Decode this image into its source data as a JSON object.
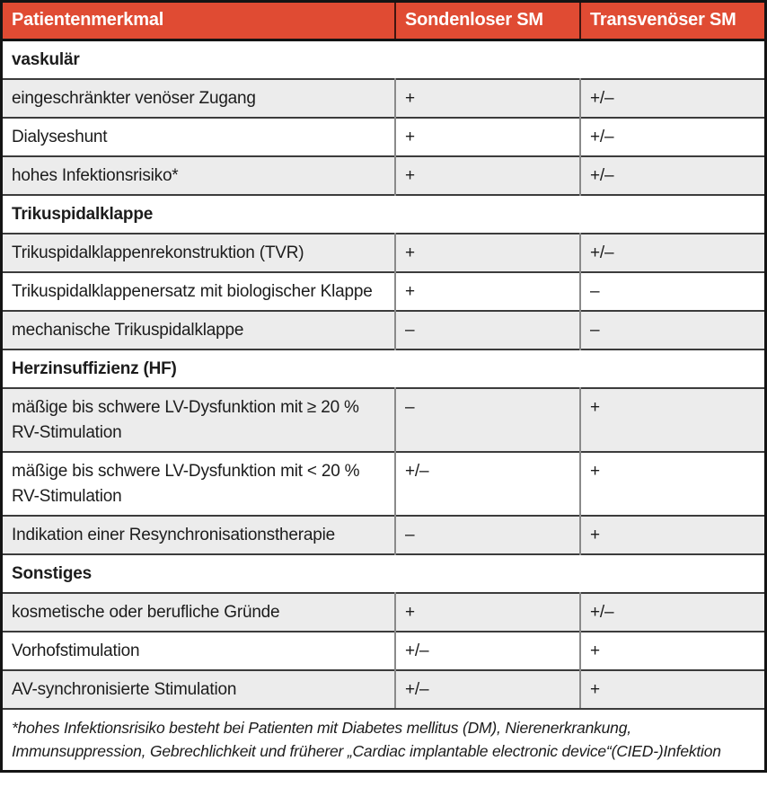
{
  "header": {
    "columns": [
      {
        "label": "Patientenmerkmal"
      },
      {
        "label": "Sondenloser SM"
      },
      {
        "label": "Transvenöser SM"
      }
    ]
  },
  "rows": [
    {
      "type": "section",
      "label": "vaskulär"
    },
    {
      "type": "data",
      "label": "eingeschränkter venöser Zugang",
      "sondenloser_sm": "+",
      "transvenoeser_sm": "+/–"
    },
    {
      "type": "data",
      "label": "Dialyseshunt",
      "sondenloser_sm": "+",
      "transvenoeser_sm": "+/–"
    },
    {
      "type": "data",
      "label": "hohes Infektionsrisiko*",
      "sondenloser_sm": "+",
      "transvenoeser_sm": "+/–"
    },
    {
      "type": "section",
      "label": "Trikuspidalklappe"
    },
    {
      "type": "data",
      "label": "Trikuspidalklappenrekonstruktion (TVR)",
      "sondenloser_sm": "+",
      "transvenoeser_sm": "+/–"
    },
    {
      "type": "data",
      "label": "Trikuspidalklappenersatz mit biologischer Klappe",
      "sondenloser_sm": "+",
      "transvenoeser_sm": "–"
    },
    {
      "type": "data",
      "label": "mechanische Trikuspidalklappe",
      "sondenloser_sm": "–",
      "transvenoeser_sm": "–"
    },
    {
      "type": "section",
      "label": "Herzinsuffizienz (HF)"
    },
    {
      "type": "data",
      "label": "mäßige bis schwere LV-Dysfunktion mit ≥ 20 % RV-Stimulation",
      "sondenloser_sm": "–",
      "transvenoeser_sm": "+"
    },
    {
      "type": "data",
      "label": "mäßige bis schwere LV-Dysfunktion mit < 20 % RV-Stimulation",
      "sondenloser_sm": "+/–",
      "transvenoeser_sm": "+"
    },
    {
      "type": "data",
      "label": "Indikation einer Resynchronisationstherapie",
      "sondenloser_sm": "–",
      "transvenoeser_sm": "+"
    },
    {
      "type": "section",
      "label": "Sonstiges"
    },
    {
      "type": "data",
      "label": "kosmetische oder berufliche Gründe",
      "sondenloser_sm": "+",
      "transvenoeser_sm": "+/–"
    },
    {
      "type": "data",
      "label": "Vorhofstimulation",
      "sondenloser_sm": "+/–",
      "transvenoeser_sm": "+"
    },
    {
      "type": "data",
      "label": "AV-synchronisierte Stimulation",
      "sondenloser_sm": "+/–",
      "transvenoeser_sm": "+"
    }
  ],
  "footnote": "*hohes Infektionsrisiko besteht bei Patienten mit Diabetes mellitus (DM), Nierenerkrankung, Immunsuppression, Gebrechlichkeit und früherer „Cardiac implantable electronic device“(CIED-)Infektion",
  "colors": {
    "header_bg": "#e04b33",
    "header_text": "#ffffff",
    "row_shade": "#ececec",
    "border_outer": "#141414",
    "border_row": "#3c3c3c",
    "border_column": "#8a8a8a"
  }
}
